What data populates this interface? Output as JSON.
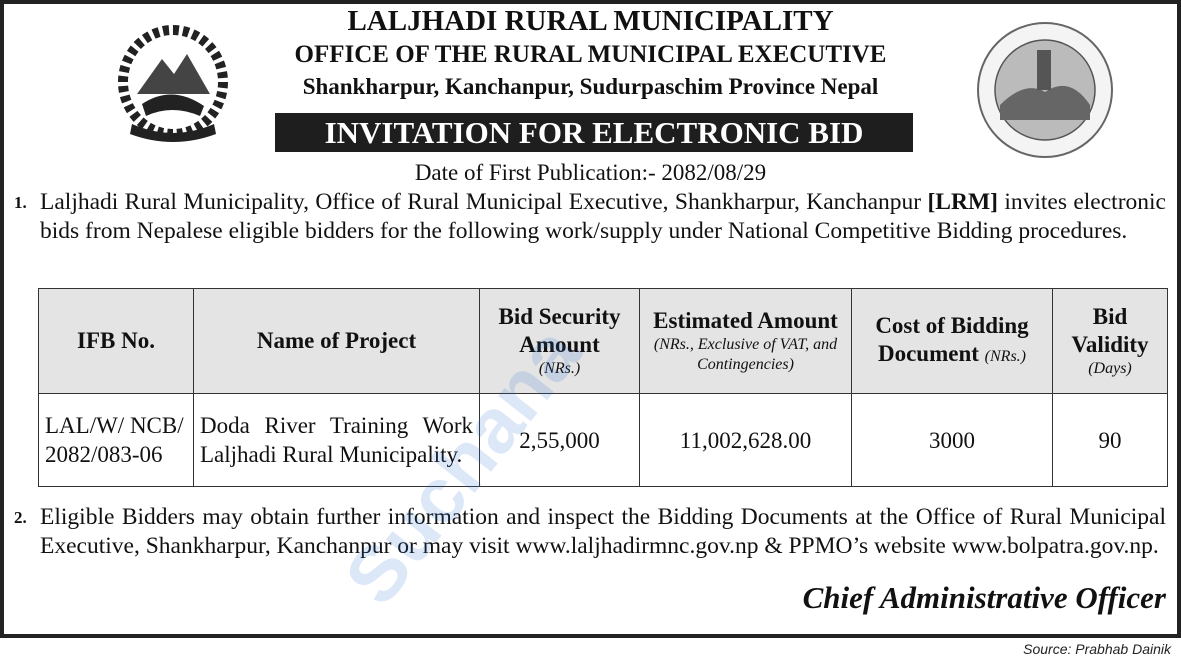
{
  "header": {
    "line1": "LALJHADI RURAL MUNICIPALITY",
    "line2": "OFFICE OF THE RURAL MUNICIPAL EXECUTIVE",
    "line3": "Shankharpur, Kanchanpur, Sudurpaschim Province Nepal",
    "banner": "INVITATION FOR ELECTRONIC BID",
    "date": "Date of First Publication:- 2082/08/29"
  },
  "logos": {
    "left": "nepal-government-emblem",
    "right": "laljhadi-municipality-seal"
  },
  "para1": {
    "num": "1.",
    "text_a": "Laljhadi Rural Municipality, Office of Rural Municipal Executive, Shankharpur, Kanchanpur ",
    "bold": "[LRM]",
    "text_b": " invites electronic bids from Nepalese eligible bidders for the following work/supply under National Competitive Bidding procedures."
  },
  "table": {
    "headers": {
      "ifb": "IFB No.",
      "project": "Name of Project",
      "security": "Bid Security Amount",
      "security_sub": "(NRs.)",
      "estimated": "Estimated Amount",
      "estimated_sub": "(NRs., Exclusive of VAT, and Contingencies)",
      "cost": "Cost of Bidding Document",
      "cost_sub": "(NRs.)",
      "validity": "Bid Validity",
      "validity_sub": "(Days)"
    },
    "rows": [
      {
        "ifb": "LAL/W/ NCB/ 2082/083-06",
        "project": "Doda River Training Work Laljhadi Rural Municipality.",
        "security": "2,55,000",
        "estimated": "11,002,628.00",
        "cost": "3000",
        "validity": "90"
      }
    ]
  },
  "para2": {
    "num": "2.",
    "text": "Eligible Bidders may obtain further information and inspect the Bidding Documents at the Office of Rural Municipal Executive, Shankharpur, Kanchanpur or may visit www.laljhadirmnc.gov.np & PPMO’s website www.bolpatra.gov.np."
  },
  "signature": "Chief Administrative Officer",
  "source": "Source: Prabhab Dainik",
  "watermark": "Suchana"
}
